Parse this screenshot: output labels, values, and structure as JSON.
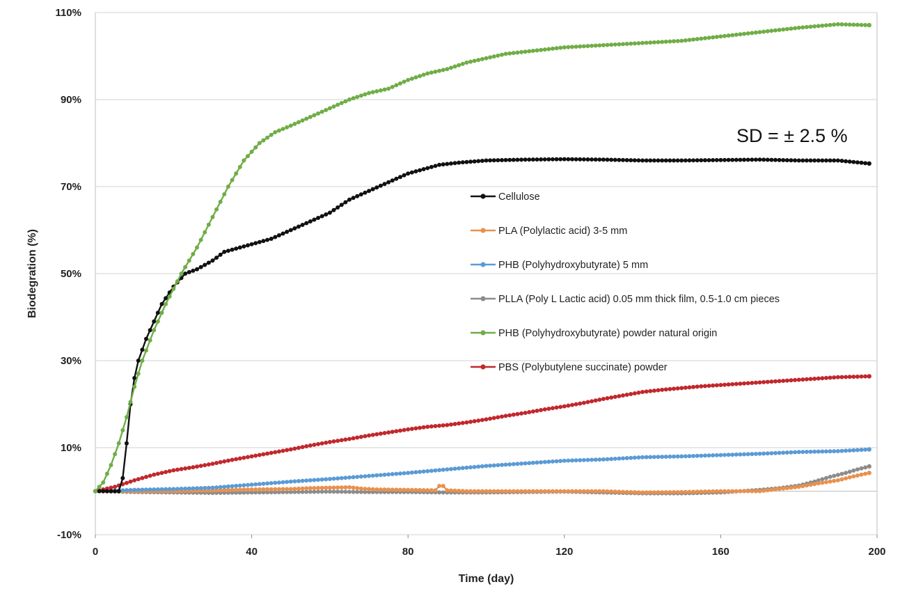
{
  "chart_data": {
    "type": "line",
    "title": "",
    "xlabel": "Time (day)",
    "ylabel": "Biodegration (%)",
    "xlim": [
      0,
      200
    ],
    "ylim": [
      -10,
      110
    ],
    "x_ticks": [
      "0",
      "40",
      "80",
      "120",
      "160",
      "200"
    ],
    "y_ticks": [
      "-10%",
      "10%",
      "30%",
      "50%",
      "70%",
      "90%",
      "110%"
    ],
    "grid": "horizontal",
    "legend_position": "center-right",
    "annotation": "SD = ± 2.5 %",
    "series": [
      {
        "name": "Cellulose",
        "color": "#111111",
        "x": [
          0,
          6,
          7,
          8,
          9,
          10,
          11,
          13,
          15,
          17,
          20,
          23,
          26,
          30,
          33,
          37,
          41,
          45,
          50,
          55,
          60,
          65,
          70,
          75,
          80,
          84,
          88,
          93,
          100,
          110,
          120,
          130,
          140,
          150,
          160,
          170,
          180,
          190,
          198
        ],
        "y": [
          0,
          0,
          3,
          11,
          20,
          26,
          30,
          35,
          39,
          43,
          47,
          50,
          51,
          53,
          55,
          56,
          57,
          58,
          60,
          62,
          64,
          67,
          69,
          71,
          73,
          74,
          75,
          75.5,
          76,
          76.2,
          76.3,
          76.2,
          76,
          76,
          76.1,
          76.2,
          76,
          76,
          75.3
        ]
      },
      {
        "name": "PLA (Polylactic acid) 3-5 mm",
        "color": "#e8914f",
        "x": [
          0,
          10,
          20,
          30,
          40,
          50,
          55,
          60,
          65,
          68,
          72,
          80,
          87,
          88,
          89,
          90,
          95,
          100,
          110,
          120,
          130,
          140,
          150,
          160,
          170,
          175,
          180,
          185,
          190,
          194,
          198
        ],
        "y": [
          0,
          0,
          0,
          0.2,
          0.4,
          0.5,
          0.7,
          0.8,
          0.9,
          0.6,
          0.4,
          0.3,
          0.2,
          1.2,
          1.2,
          0.2,
          0,
          0,
          0,
          0,
          0,
          -0.3,
          -0.2,
          0,
          0,
          0.5,
          1,
          1.8,
          2.5,
          3.4,
          4.2
        ]
      },
      {
        "name": "PHB (Polyhydroxybutyrate) 5 mm",
        "color": "#5b9bd5",
        "x": [
          0,
          10,
          20,
          30,
          40,
          50,
          60,
          70,
          80,
          90,
          100,
          110,
          120,
          130,
          140,
          150,
          160,
          170,
          180,
          190,
          198
        ],
        "y": [
          0,
          0.3,
          0.5,
          0.8,
          1.5,
          2.2,
          2.8,
          3.5,
          4.2,
          5,
          5.8,
          6.4,
          7,
          7.3,
          7.8,
          8,
          8.3,
          8.6,
          9,
          9.2,
          9.6
        ]
      },
      {
        "name": "PLLA (Poly L Lactic acid) 0.05 mm thick film, 0.5-1.0 cm pieces",
        "color": "#8c8c8c",
        "x": [
          0,
          10,
          20,
          30,
          40,
          50,
          60,
          70,
          80,
          90,
          100,
          110,
          120,
          130,
          140,
          150,
          160,
          165,
          170,
          175,
          180,
          184,
          188,
          192,
          195,
          198
        ],
        "y": [
          0,
          -0.2,
          -0.3,
          -0.4,
          -0.3,
          -0.2,
          -0.1,
          -0.2,
          -0.2,
          -0.3,
          -0.3,
          -0.2,
          -0.1,
          -0.3,
          -0.5,
          -0.5,
          -0.3,
          0,
          0.3,
          0.7,
          1.3,
          2.2,
          3.3,
          4.2,
          5,
          5.7
        ]
      },
      {
        "name": "PHB (Polyhydroxybutyrate) powder natural origin",
        "color": "#70ad47",
        "x": [
          0,
          2,
          4,
          6,
          8,
          10,
          12,
          15,
          18,
          22,
          26,
          30,
          34,
          38,
          42,
          46,
          50,
          55,
          60,
          65,
          70,
          75,
          80,
          85,
          90,
          95,
          100,
          105,
          110,
          115,
          120,
          130,
          140,
          150,
          160,
          170,
          180,
          190,
          198
        ],
        "y": [
          0,
          2,
          6,
          11,
          17,
          24,
          30,
          37,
          43,
          50,
          56,
          63,
          70,
          76,
          80,
          82.5,
          84,
          86,
          88,
          90,
          91.5,
          92.5,
          94.5,
          96,
          97,
          98.5,
          99.5,
          100.5,
          101,
          101.5,
          102,
          102.5,
          103,
          103.5,
          104.5,
          105.5,
          106.5,
          107.3,
          107.1
        ]
      },
      {
        "name": "PBS (Polybutylene succinate) powder",
        "color": "#c0282d",
        "x": [
          0,
          5,
          10,
          15,
          20,
          25,
          30,
          35,
          40,
          45,
          50,
          55,
          60,
          65,
          70,
          75,
          80,
          85,
          90,
          95,
          100,
          105,
          110,
          115,
          120,
          125,
          130,
          135,
          140,
          145,
          150,
          155,
          160,
          165,
          170,
          175,
          180,
          185,
          190,
          198
        ],
        "y": [
          0,
          1,
          2.5,
          3.8,
          4.8,
          5.5,
          6.3,
          7.2,
          8,
          8.8,
          9.6,
          10.5,
          11.3,
          12,
          12.8,
          13.5,
          14.2,
          14.8,
          15.2,
          15.8,
          16.5,
          17.3,
          18,
          18.8,
          19.5,
          20.3,
          21.2,
          22,
          22.8,
          23.3,
          23.7,
          24.1,
          24.4,
          24.7,
          25,
          25.3,
          25.6,
          25.9,
          26.2,
          26.4
        ]
      }
    ]
  }
}
